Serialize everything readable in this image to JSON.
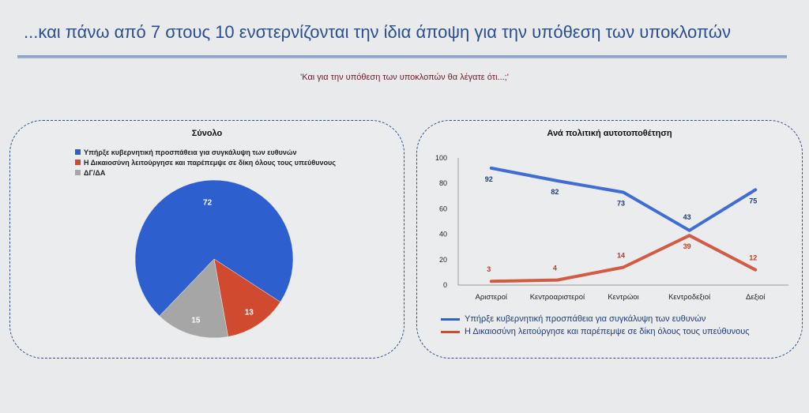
{
  "header": {
    "title": "...και πάνω από 7 στους 10 ενστερνίζονται την ίδια άποψη για την υπόθεση των υποκλοπών",
    "question": "'Και για την υπόθεση των υποκλοπών θα λέγατε ότι...;'"
  },
  "colors": {
    "blue": "#2e5fcf",
    "red": "#d04a30",
    "gray": "#a6a6a6"
  },
  "chart_data": [
    {
      "type": "pie",
      "title": "Σύνολο",
      "legend_position": "top-left",
      "categories": [
        "Υπήρξε κυβερνητική προσπάθεια για συγκάλυψη των ευθυνών",
        "Η Δικαιοσύνη λειτούργησε και παρέπεμψε σε δίκη όλους τους υπεύθυνους",
        "ΔΓ/ΔΑ"
      ],
      "values": [
        72,
        13,
        15
      ],
      "colors": [
        "#2e5fcf",
        "#d04a30",
        "#a6a6a6"
      ]
    },
    {
      "type": "line",
      "title": "Ανά πολιτική αυτοτοποθέτηση",
      "categories": [
        "Αριστεροί",
        "Κεντροαριστεροί",
        "Κεντρώοι",
        "Κεντροδεξιοί",
        "Δεξιοί"
      ],
      "ylim": [
        0,
        100
      ],
      "yticks": [
        0,
        20,
        40,
        60,
        80,
        100
      ],
      "grid": false,
      "legend_position": "bottom",
      "series": [
        {
          "name": "Υπήρξε κυβερνητική προσπάθεια για συγκάλυψη των ευθυνών",
          "values": [
            92,
            82,
            73,
            43,
            75
          ],
          "color": "#2e5fcf"
        },
        {
          "name": "Η Δικαιοσύνη λειτούργησε και παρέπεμψε σε δίκη όλους τους υπεύθυνους",
          "values": [
            3,
            4,
            14,
            39,
            12
          ],
          "color": "#d04a30"
        }
      ]
    }
  ]
}
